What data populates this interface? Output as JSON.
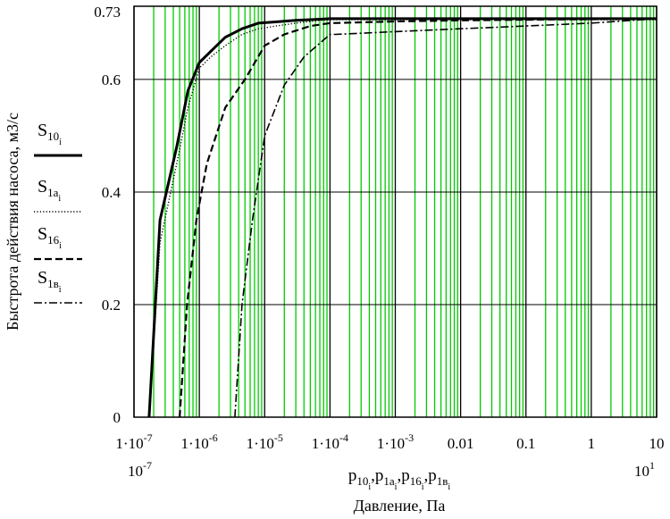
{
  "colors": {
    "background": "#ffffff",
    "minor_grid": "#00cc00",
    "major_grid": "#000000",
    "frame": "#000000",
    "series": "#000000"
  },
  "axes": {
    "ylabel": "Быстрота действия насоса, м3/с",
    "xlabel": "Давление, Па",
    "x_min_label": "10",
    "x_min_exp": "-7",
    "x_max_label": "10",
    "x_max_exp": "1"
  },
  "x_expression": [
    {
      "base": "p",
      "sub": "10",
      "subsub": "i",
      "sep": ","
    },
    {
      "base": "p",
      "sub": "1a",
      "subsub": "i",
      "sep": ","
    },
    {
      "base": "p",
      "sub": "16",
      "subsub": "i",
      "sep": ","
    },
    {
      "base": "p",
      "sub": "1в",
      "subsub": "i",
      "sep": ""
    }
  ],
  "legend": [
    {
      "base": "S",
      "sub": "10",
      "subsub": "i",
      "dash": "none",
      "width": 3
    },
    {
      "base": "S",
      "sub": "1a",
      "subsub": "i",
      "dash": "1.2 2.2",
      "width": 1.4
    },
    {
      "base": "S",
      "sub": "16",
      "subsub": "i",
      "dash": "8 4",
      "width": 2.2
    },
    {
      "base": "S",
      "sub": "1в",
      "subsub": "i",
      "dash": "9 3 2 3",
      "width": 1.6
    }
  ],
  "chart_data": {
    "type": "line",
    "x_scale": "log",
    "grid": true,
    "legend_position": "left",
    "xlim": [
      1e-07,
      10
    ],
    "ylim": [
      0,
      0.73
    ],
    "x_ticks": [
      {
        "value": 1e-07,
        "label": "1·10",
        "exp": "-7"
      },
      {
        "value": 1e-06,
        "label": "1·10",
        "exp": "-6"
      },
      {
        "value": 1e-05,
        "label": "1·10",
        "exp": "-5"
      },
      {
        "value": 0.0001,
        "label": "1·10",
        "exp": "-4"
      },
      {
        "value": 0.001,
        "label": "1·10",
        "exp": "-3"
      },
      {
        "value": 0.01,
        "label": "0.01",
        "exp": ""
      },
      {
        "value": 0.1,
        "label": "0.1",
        "exp": ""
      },
      {
        "value": 1,
        "label": "1",
        "exp": ""
      },
      {
        "value": 10,
        "label": "10",
        "exp": ""
      }
    ],
    "y_ticks": [
      {
        "value": 0,
        "label": "0"
      },
      {
        "value": 0.2,
        "label": "0.2"
      },
      {
        "value": 0.4,
        "label": "0.4"
      },
      {
        "value": 0.6,
        "label": "0.6"
      },
      {
        "value": 0.73,
        "label": "0.73"
      }
    ],
    "series": [
      {
        "name": "S10i",
        "x": [
          1.7e-07,
          2.5e-07,
          4.5e-07,
          6.7e-07,
          1e-06,
          1.5e-06,
          2.5e-06,
          4.5e-06,
          8e-06,
          1.4e-05,
          3e-05,
          7e-05,
          0.0001,
          0.001,
          0.01,
          0.1,
          1,
          10
        ],
        "y": [
          0,
          0.35,
          0.48,
          0.58,
          0.63,
          0.65,
          0.675,
          0.69,
          0.7,
          0.702,
          0.705,
          0.707,
          0.708,
          0.708,
          0.708,
          0.708,
          0.708,
          0.708
        ]
      },
      {
        "name": "S1ai",
        "x": [
          1.7e-07,
          2.5e-07,
          4.5e-07,
          6.7e-07,
          1e-06,
          1.5e-06,
          2.5e-06,
          4.5e-06,
          8e-06,
          1.5e-05,
          3e-05,
          7e-05,
          0.0001,
          0.001,
          0.01,
          0.1,
          1,
          10
        ],
        "y": [
          0,
          0.31,
          0.45,
          0.55,
          0.62,
          0.64,
          0.66,
          0.68,
          0.69,
          0.695,
          0.7,
          0.705,
          0.706,
          0.706,
          0.706,
          0.706,
          0.706,
          0.706
        ]
      },
      {
        "name": "S16i",
        "x": [
          5e-07,
          6.5e-07,
          9e-07,
          1.3e-06,
          2.5e-06,
          5e-06,
          1e-05,
          2e-05,
          5e-05,
          0.0001,
          0.001,
          0.01,
          0.1,
          1,
          10
        ],
        "y": [
          0,
          0.2,
          0.35,
          0.45,
          0.55,
          0.6,
          0.66,
          0.68,
          0.695,
          0.7,
          0.703,
          0.705,
          0.706,
          0.707,
          0.708
        ]
      },
      {
        "name": "S1вi",
        "x": [
          3.5e-06,
          4.5e-06,
          6.5e-06,
          1e-05,
          2e-05,
          4e-05,
          0.0001,
          0.00012,
          0.0003,
          0.001,
          0.01,
          0.1,
          1,
          10
        ],
        "y": [
          0,
          0.2,
          0.35,
          0.5,
          0.59,
          0.64,
          0.68,
          0.68,
          0.682,
          0.685,
          0.69,
          0.695,
          0.7,
          0.708
        ]
      }
    ]
  }
}
